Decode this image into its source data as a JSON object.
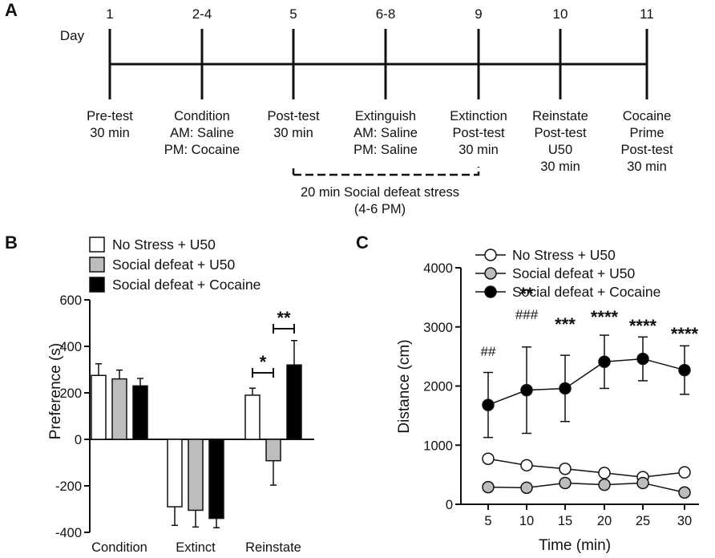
{
  "panels": {
    "a": "A",
    "b": "B",
    "c": "C"
  },
  "timeline": {
    "day_label": "Day",
    "days": [
      "1",
      "2-4",
      "5",
      "6-8",
      "9",
      "10",
      "11"
    ],
    "events": [
      [
        "Pre-test",
        "30 min"
      ],
      [
        "Condition",
        "AM: Saline",
        "PM: Cocaine"
      ],
      [
        "Post-test",
        "30 min"
      ],
      [
        "Extinguish",
        "AM: Saline",
        "PM: Saline"
      ],
      [
        "Extinction",
        "Post-test",
        "30 min"
      ],
      [
        "Reinstate",
        "Post-test",
        "U50",
        "30 min"
      ],
      [
        "Cocaine",
        "Prime",
        "Post-test",
        "30 min"
      ]
    ],
    "stress_note": [
      "20 min Social defeat stress",
      "(4-6 PM)"
    ]
  },
  "chart_data": [
    {
      "type": "bar",
      "panel": "B",
      "ylabel": "Preference (s)",
      "ylim": [
        -400,
        600
      ],
      "yticks": [
        600,
        400,
        200,
        0,
        -200,
        -400
      ],
      "categories": [
        "Condition",
        "Extinct",
        "Reinstate"
      ],
      "legend": [
        "No Stress + U50",
        "Social defeat + U50",
        "Social defeat  + Cocaine"
      ],
      "colors": [
        "#ffffff",
        "#bdbdbd",
        "#000000"
      ],
      "series": [
        {
          "name": "No Stress + U50",
          "values": [
            275,
            -290,
            190
          ],
          "errors": [
            50,
            80,
            30
          ]
        },
        {
          "name": "Social defeat + U50",
          "values": [
            260,
            -305,
            -92
          ],
          "errors": [
            38,
            72,
            105
          ]
        },
        {
          "name": "Social defeat  + Cocaine",
          "values": [
            230,
            -340,
            320
          ],
          "errors": [
            32,
            40,
            105
          ]
        }
      ],
      "annotations": [
        {
          "text": "*",
          "category": "Reinstate",
          "from": 0,
          "to": 1
        },
        {
          "text": "**",
          "category": "Reinstate",
          "from": 1,
          "to": 2
        }
      ]
    },
    {
      "type": "line",
      "panel": "C",
      "xlabel": "Time (min)",
      "ylabel": "Distance (cm)",
      "x": [
        5,
        10,
        15,
        20,
        25,
        30
      ],
      "xticks": [
        "5",
        "10",
        "15",
        "20",
        "25",
        "30"
      ],
      "ylim": [
        0,
        4000
      ],
      "yticks": [
        4000,
        3000,
        2000,
        1000,
        0
      ],
      "legend": [
        "No Stress + U50",
        "Social defeat + U50",
        "Social defeat + Cocaine"
      ],
      "series": [
        {
          "name": "No Stress + U50",
          "values": [
            770,
            660,
            600,
            530,
            460,
            540
          ],
          "errors": [
            0,
            0,
            0,
            0,
            0,
            0
          ],
          "marker": "open"
        },
        {
          "name": "Social defeat + U50",
          "values": [
            290,
            280,
            360,
            330,
            360,
            200
          ],
          "errors": [
            0,
            0,
            0,
            0,
            0,
            0
          ],
          "marker": "gray"
        },
        {
          "name": "Social defeat + Cocaine",
          "values": [
            1680,
            1930,
            1960,
            2410,
            2460,
            2270
          ],
          "errors": [
            550,
            730,
            560,
            450,
            370,
            410
          ],
          "marker": "filled"
        }
      ],
      "annotations": [
        {
          "x": 5,
          "lines": [
            "##"
          ]
        },
        {
          "x": 10,
          "lines": [
            "**",
            "###"
          ]
        },
        {
          "x": 15,
          "lines": [
            "***"
          ]
        },
        {
          "x": 20,
          "lines": [
            "****"
          ]
        },
        {
          "x": 25,
          "lines": [
            "****"
          ]
        },
        {
          "x": 30,
          "lines": [
            "****"
          ]
        }
      ]
    }
  ]
}
